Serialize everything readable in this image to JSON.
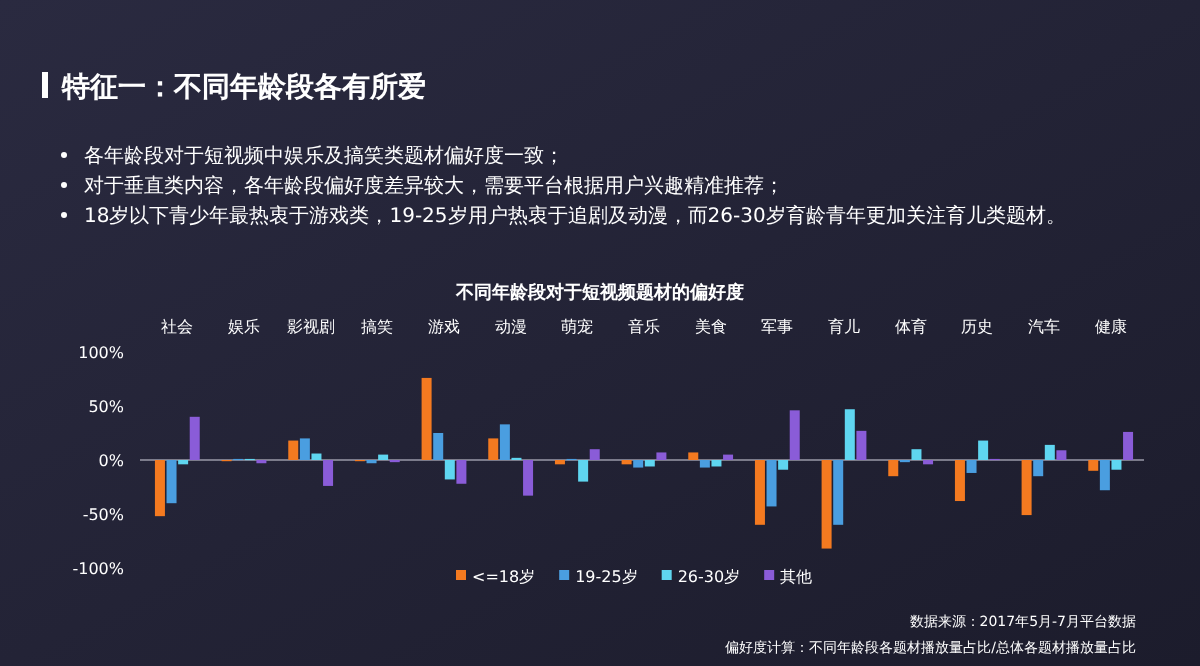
{
  "chart_data": {
    "type": "bar",
    "title": "特征一：不同年龄段各有所爱",
    "subtitle": "不同年龄段对于短视频题材的偏好度",
    "annotations": [
      "各年龄段对于短视频中娱乐及搞笑类题材偏好度一致；",
      "对于垂直类内容，各年龄段偏好度差异较大，需要平台根据用户兴趣精准推荐；",
      "18岁以下青少年最热衷于游戏类，19-25岁用户热衷于追剧及动漫，而26-30岁育龄青年更加关注育儿类题材。",
      "数据来源：2017年5月-7月平台数据",
      "偏好度计算：不同年龄段各题材播放量占比/总体各题材播放量占比"
    ],
    "categories": [
      "社会",
      "娱乐",
      "影视剧",
      "搞笑",
      "游戏",
      "动漫",
      "萌宠",
      "音乐",
      "美食",
      "军事",
      "育儿",
      "体育",
      "历史",
      "汽车",
      "健康"
    ],
    "series": [
      {
        "name": "<=18岁",
        "color": "#f47a20",
        "values": [
          -52,
          -1,
          18,
          -1,
          76,
          20,
          -4,
          -4,
          7,
          -60,
          -82,
          -15,
          -38,
          -51,
          -10
        ]
      },
      {
        "name": "19-25岁",
        "color": "#4a9ee0",
        "values": [
          -40,
          1,
          20,
          -3,
          25,
          33,
          1,
          -7,
          -7,
          -43,
          -60,
          -2,
          -12,
          -15,
          -28
        ]
      },
      {
        "name": "26-30岁",
        "color": "#5fd6f0",
        "values": [
          -4,
          1,
          6,
          5,
          -18,
          2,
          -20,
          -6,
          -6,
          -9,
          47,
          10,
          18,
          14,
          -9
        ]
      },
      {
        "name": "其他",
        "color": "#8a5cd8",
        "values": [
          40,
          -3,
          -24,
          -2,
          -22,
          -33,
          10,
          7,
          5,
          46,
          27,
          -4,
          1,
          9,
          26
        ]
      }
    ],
    "ylim": [
      -100,
      100
    ],
    "yticks": [
      {
        "value": -100,
        "label": "-100%"
      },
      {
        "value": -50,
        "label": "-50%"
      },
      {
        "value": 0,
        "label": "0%"
      },
      {
        "value": 50,
        "label": "50%"
      },
      {
        "value": 100,
        "label": "100%"
      }
    ],
    "legend": "bottom left"
  }
}
